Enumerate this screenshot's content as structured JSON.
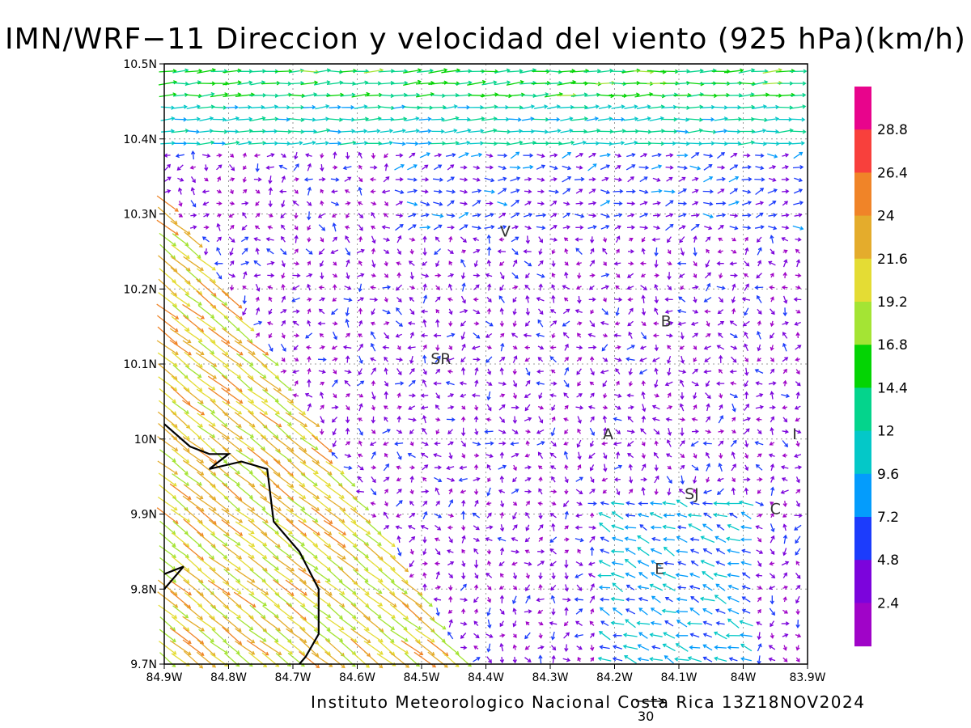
{
  "title": "IMN/WRF−11 Direccion y velocidad del viento (925 hPa)(km/h)",
  "credit": "Instituto Meteorologico Nacional Costa Rica 13Z18NOV2024",
  "reference_vector": {
    "label": "30"
  },
  "axes": {
    "lon_labels": [
      "84.9W",
      "84.8W",
      "84.7W",
      "84.6W",
      "84.5W",
      "84.4W",
      "84.3W",
      "84.2W",
      "84.1W",
      "84W",
      "83.9W"
    ],
    "lat_labels": [
      "10.5N",
      "10.4N",
      "10.3N",
      "10.2N",
      "10.1N",
      "10N",
      "9.9N",
      "9.8N",
      "9.7N"
    ]
  },
  "colorbar": {
    "labels": [
      "28.8",
      "26.4",
      "24",
      "21.6",
      "19.2",
      "16.8",
      "14.4",
      "12",
      "9.6",
      "7.2",
      "4.8",
      "2.4"
    ],
    "colors": [
      "#e8048c",
      "#f8403c",
      "#f08428",
      "#e4ac2c",
      "#e4dc34",
      "#a4e434",
      "#04d404",
      "#04d48c",
      "#04c8c8",
      "#049cfc",
      "#1c3cfc",
      "#7c04dc",
      "#a004c8"
    ]
  },
  "stations": [
    {
      "label": "V",
      "lon": -84.37,
      "lat": 10.27
    },
    {
      "label": "B",
      "lon": -84.12,
      "lat": 10.15
    },
    {
      "label": "SR",
      "lon": -84.47,
      "lat": 10.1
    },
    {
      "label": "A",
      "lon": -84.21,
      "lat": 10.0
    },
    {
      "label": "I",
      "lon": -83.92,
      "lat": 10.0
    },
    {
      "label": "SJ",
      "lon": -84.08,
      "lat": 9.92
    },
    {
      "label": "C",
      "lon": -83.95,
      "lat": 9.9
    },
    {
      "label": "E",
      "lon": -84.13,
      "lat": 9.82
    }
  ],
  "coastline": [
    [
      [
        -84.9,
        10.02
      ],
      [
        -84.86,
        9.99
      ],
      [
        -84.83,
        9.98
      ],
      [
        -84.8,
        9.98
      ],
      [
        -84.83,
        9.96
      ],
      [
        -84.78,
        9.97
      ],
      [
        -84.74,
        9.96
      ],
      [
        -84.73,
        9.89
      ],
      [
        -84.69,
        9.85
      ],
      [
        -84.66,
        9.8
      ],
      [
        -84.66,
        9.74
      ],
      [
        -84.68,
        9.71
      ],
      [
        -84.69,
        9.7
      ]
    ],
    [
      [
        -84.9,
        9.8
      ],
      [
        -84.87,
        9.83
      ],
      [
        -84.9,
        9.82
      ]
    ]
  ],
  "chart_data": {
    "type": "vector-field",
    "title": "IMN/WRF−11 Direccion y velocidad del viento (925 hPa)(km/h)",
    "x_range": [
      -84.9,
      -83.9
    ],
    "y_range": [
      9.7,
      10.5
    ],
    "regions": [
      {
        "area": "northern band (10.38N–10.5N)",
        "direction_to_deg": 90,
        "speed_kmh": [
          9.6,
          16.8
        ]
      },
      {
        "area": "Pacific lowlands south-west of 84.5W",
        "direction_to_deg": 135,
        "speed_kmh": [
          16.8,
          28.8
        ]
      },
      {
        "area": "central highlands",
        "direction_to_deg": "variable",
        "speed_kmh": [
          0,
          7.2
        ]
      },
      {
        "area": "south-east valleys near E and SJ",
        "direction_to_deg": 290,
        "speed_kmh": [
          7.2,
          14.4
        ]
      }
    ]
  }
}
